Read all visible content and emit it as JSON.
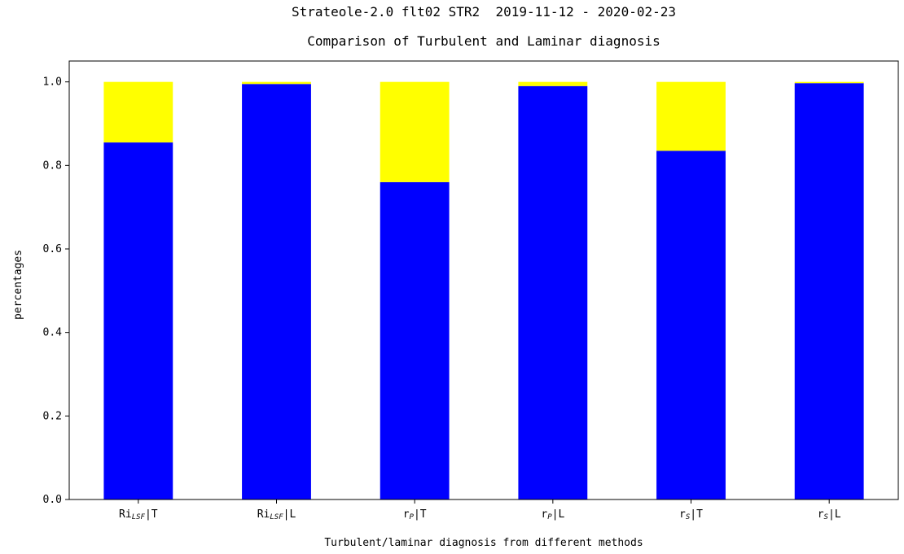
{
  "chart_data": {
    "type": "stacked_bar",
    "title": "Strateole-2.0 flt02 STR2  2019-11-12 - 2020-02-23",
    "subtitle": "Comparison of Turbulent and Laminar diagnosis",
    "x_label": "Turbulent/laminar diagnosis from different methods",
    "y_label": "percentages",
    "categories": [
      {
        "main": "Ri",
        "sub": "LSF",
        "tail": "|T"
      },
      {
        "main": "Ri",
        "sub": "LSF",
        "tail": "|L"
      },
      {
        "main": "r",
        "sub": "P",
        "tail": "|T"
      },
      {
        "main": "r",
        "sub": "P",
        "tail": "|L"
      },
      {
        "main": "r",
        "sub": "S",
        "tail": "|T"
      },
      {
        "main": "r",
        "sub": "S",
        "tail": "|L"
      }
    ],
    "series": [
      {
        "color": "#0000ff",
        "values": [
          0.855,
          0.995,
          0.76,
          0.99,
          0.835,
          0.997
        ]
      },
      {
        "color": "#ffff00",
        "values": [
          0.145,
          0.005,
          0.24,
          0.01,
          0.165,
          0.003
        ]
      }
    ],
    "ylim": [
      0,
      1.05
    ],
    "yticks": [
      {
        "value": 0,
        "label": "0.0"
      },
      0.2,
      0.4,
      0.6,
      0.8,
      {
        "value": 1,
        "label": "1.0"
      }
    ]
  }
}
